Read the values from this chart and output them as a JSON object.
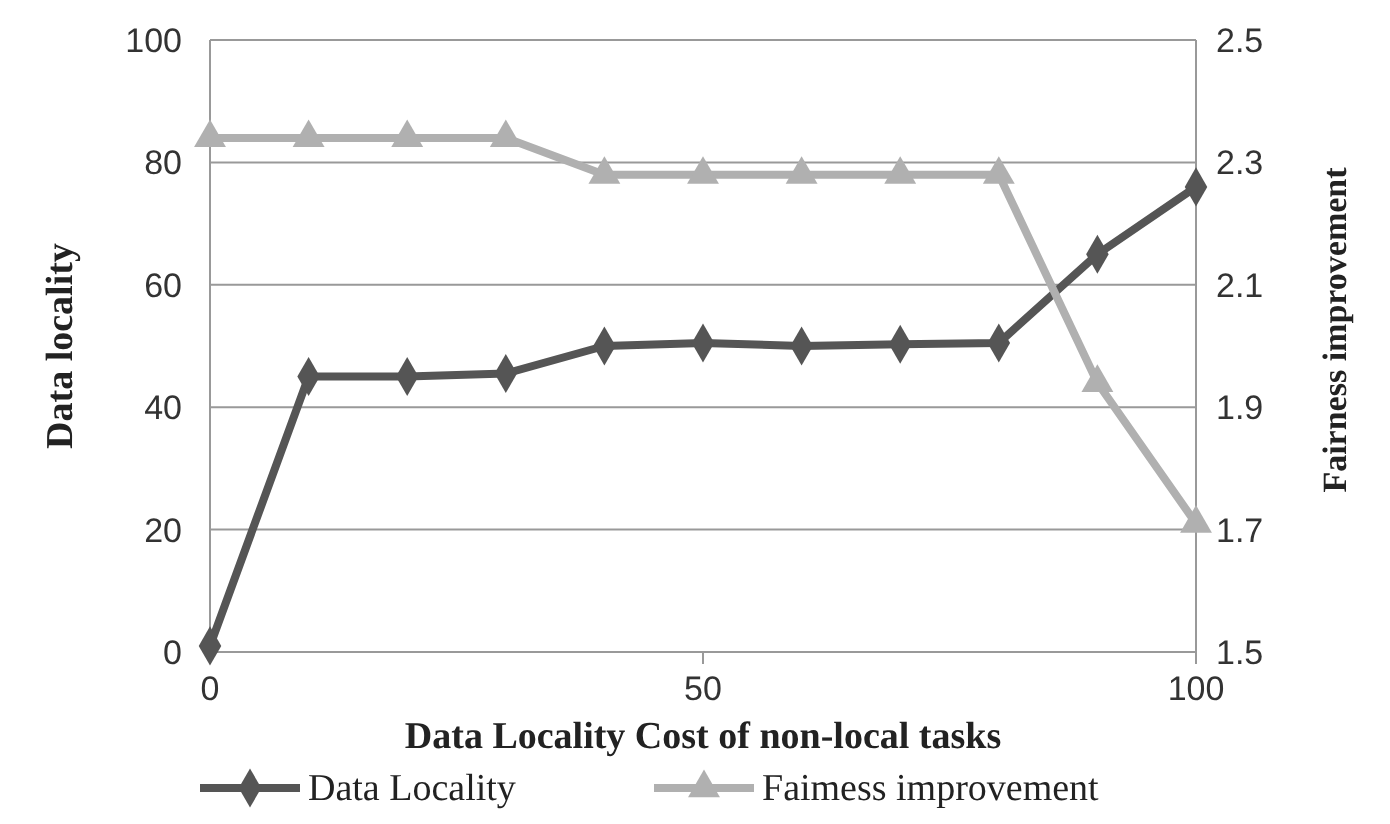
{
  "chart_data": {
    "type": "line",
    "xlabel": "Data Locality Cost of non-local tasks",
    "ylabel": "Data locality",
    "y2label": "Fairness improvement",
    "x": [
      0,
      10,
      20,
      30,
      40,
      50,
      60,
      70,
      80,
      90,
      100
    ],
    "xlim": [
      0,
      100
    ],
    "xticks": [
      0,
      50,
      100
    ],
    "ylim": [
      0,
      100
    ],
    "yticks": [
      0,
      20,
      40,
      60,
      80,
      100
    ],
    "y2lim": [
      1.5,
      2.5
    ],
    "y2ticks": [
      1.5,
      1.7,
      1.9,
      2.1,
      2.3,
      2.5
    ],
    "grid": "y",
    "legend": "bottom",
    "line_style": "solid",
    "series": [
      {
        "name": "Data Locality",
        "color": "#555555",
        "marker": "diamond",
        "values": [
          1,
          45,
          45,
          45.5,
          50,
          50.5,
          50,
          50.3,
          50.5,
          65,
          76
        ]
      },
      {
        "name": "Faimess improvement",
        "color": "#b0b0b0",
        "marker": "triangle",
        "axis": "y2",
        "values": [
          2.34,
          2.34,
          2.34,
          2.34,
          2.28,
          2.28,
          2.28,
          2.28,
          2.28,
          1.94,
          1.71
        ]
      }
    ]
  }
}
